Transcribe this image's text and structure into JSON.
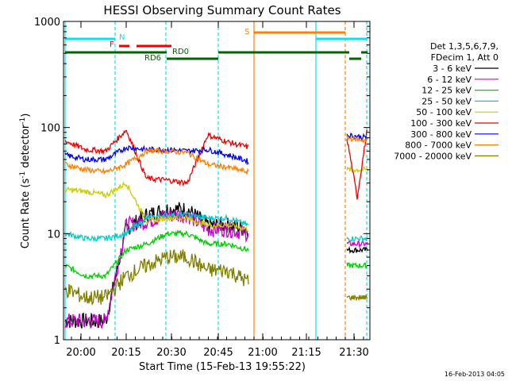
{
  "chart_data": {
    "type": "line",
    "title": "HESSI Observing Summary Count Rates",
    "xlabel": "Start Time (15-Feb-13 19:55:22)",
    "ylabel_main": "Count Rate (s",
    "ylabel_sup1": "-1",
    "ylabel_mid": " detector",
    "ylabel_sup2": "-1",
    "ylabel_end": ")",
    "y_scale": "log",
    "ylim": [
      1,
      1000
    ],
    "x_ticks": [
      "20:00",
      "20:15",
      "20:30",
      "20:45",
      "21:00",
      "21:15",
      "21:30"
    ],
    "y_ticks": [
      "1",
      "10",
      "100",
      "1000"
    ],
    "timestamp": "16-Feb-2013 04:05",
    "legend_header": [
      "Det 1,3,5,6,7,9,",
      "FDecim 1, Att 0"
    ],
    "series": [
      {
        "name": "3 - 6 keV",
        "color": "#000000",
        "values_before_gap": [
          1.5,
          1.5,
          1.5,
          11,
          15,
          17,
          17,
          12,
          12,
          11
        ],
        "values_after_gap": [
          null,
          7
        ]
      },
      {
        "name": "6 - 12 keV",
        "color": "#cc00cc",
        "values_before_gap": [
          1.5,
          1.5,
          1.5,
          12,
          13,
          15,
          15,
          11,
          11,
          10
        ],
        "values_after_gap": [
          null,
          8
        ]
      },
      {
        "name": "12 - 25 keV",
        "color": "#00cc00",
        "values_before_gap": [
          5,
          4,
          4,
          7,
          8,
          10,
          10,
          8,
          8,
          7
        ],
        "values_after_gap": [
          null,
          5
        ]
      },
      {
        "name": "25 - 50 keV",
        "color": "#00cccc",
        "values_before_gap": [
          10,
          9,
          9,
          10,
          14,
          15,
          15,
          14,
          14,
          12
        ],
        "values_after_gap": [
          null,
          9
        ]
      },
      {
        "name": "50 - 100 keV",
        "color": "#cccc00",
        "values_before_gap": [
          26,
          25,
          23,
          30,
          13,
          14,
          14,
          12,
          12,
          11
        ],
        "values_after_gap": [
          null,
          40
        ]
      },
      {
        "name": "100 - 300 keV",
        "color": "#ee0000",
        "values_before_gap": [
          75,
          62,
          60,
          95,
          33,
          32,
          30,
          85,
          73,
          65
        ],
        "values_after_gap": [
          80,
          22,
          100
        ]
      },
      {
        "name": "300 - 800 keV",
        "color": "#0000ee",
        "values_before_gap": [
          55,
          50,
          50,
          65,
          62,
          62,
          60,
          62,
          55,
          48
        ],
        "values_after_gap": [
          85,
          80
        ]
      },
      {
        "name": "800 - 7000 keV",
        "color": "#ff8000",
        "values_before_gap": [
          45,
          40,
          38,
          45,
          60,
          60,
          58,
          45,
          42,
          38
        ],
        "values_after_gap": [
          80,
          75
        ]
      },
      {
        "name": "7000 - 20000 keV",
        "color": "#808000",
        "values_before_gap": [
          3,
          2.5,
          2.5,
          4,
          5,
          6,
          6,
          4.5,
          4.5,
          3.5
        ],
        "values_after_gap": [
          null,
          2.5
        ]
      }
    ],
    "flags": [
      {
        "label": "N",
        "color": "#00e5ee"
      },
      {
        "label": "F",
        "color": "#ee0000"
      },
      {
        "label": "S",
        "color": "#ff8000"
      },
      {
        "label": "RD0",
        "color": "#006400"
      },
      {
        "label": "RD6",
        "color": "#006400"
      }
    ]
  }
}
